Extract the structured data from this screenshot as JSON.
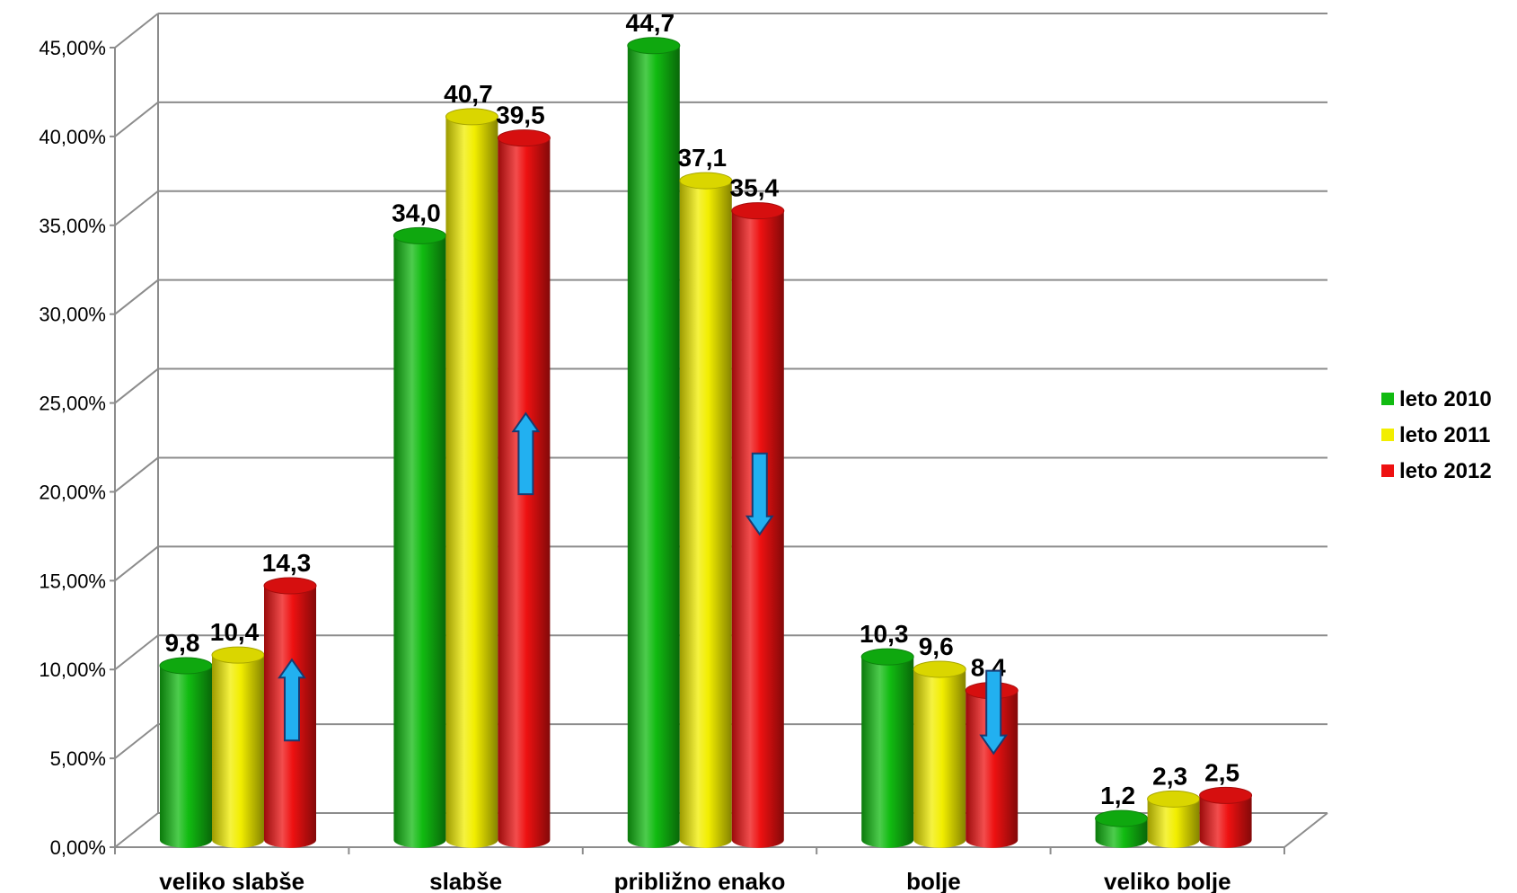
{
  "chart_data": {
    "type": "bar",
    "style": "3d-cylinder",
    "categories": [
      "veliko slabše",
      "slabše",
      "približno enako",
      "bolje",
      "veliko bolje"
    ],
    "series": [
      {
        "name": "leto 2010",
        "color": "#11bb11",
        "values": [
          9.8,
          34.0,
          44.7,
          10.3,
          1.2
        ],
        "labels": [
          "9,8",
          "34,0",
          "44,7",
          "10,3",
          "1,2"
        ]
      },
      {
        "name": "leto 2011",
        "color": "#f2ee00",
        "values": [
          10.4,
          40.7,
          37.1,
          9.6,
          2.3
        ],
        "labels": [
          "10,4",
          "40,7",
          "37,1",
          "9,6",
          "2,3"
        ]
      },
      {
        "name": "leto 2012",
        "color": "#ee1111",
        "values": [
          14.3,
          39.5,
          35.4,
          8.4,
          2.5
        ],
        "labels": [
          "14,3",
          "39,5",
          "35,4",
          "8,4",
          "2,5"
        ]
      }
    ],
    "ylim": [
      0,
      45
    ],
    "yticks": [
      0,
      5,
      10,
      15,
      20,
      25,
      30,
      35,
      40,
      45
    ],
    "ytick_labels": [
      "0,00%",
      "5,00%",
      "10,00%",
      "15,00%",
      "20,00%",
      "25,00%",
      "30,00%",
      "35,00%",
      "40,00%",
      "45,00%"
    ],
    "grid": true,
    "legend": "right",
    "annotations": [
      {
        "type": "arrow",
        "direction": "up",
        "category": "veliko slabše",
        "series": "leto 2012",
        "color": "#22b0f0"
      },
      {
        "type": "arrow",
        "direction": "up",
        "category": "slabše",
        "series": "leto 2012",
        "color": "#22b0f0"
      },
      {
        "type": "arrow",
        "direction": "down",
        "category": "približno enako",
        "series": "leto 2012",
        "color": "#22b0f0"
      },
      {
        "type": "arrow",
        "direction": "down",
        "category": "bolje",
        "series": "leto 2012",
        "color": "#22b0f0"
      }
    ]
  }
}
